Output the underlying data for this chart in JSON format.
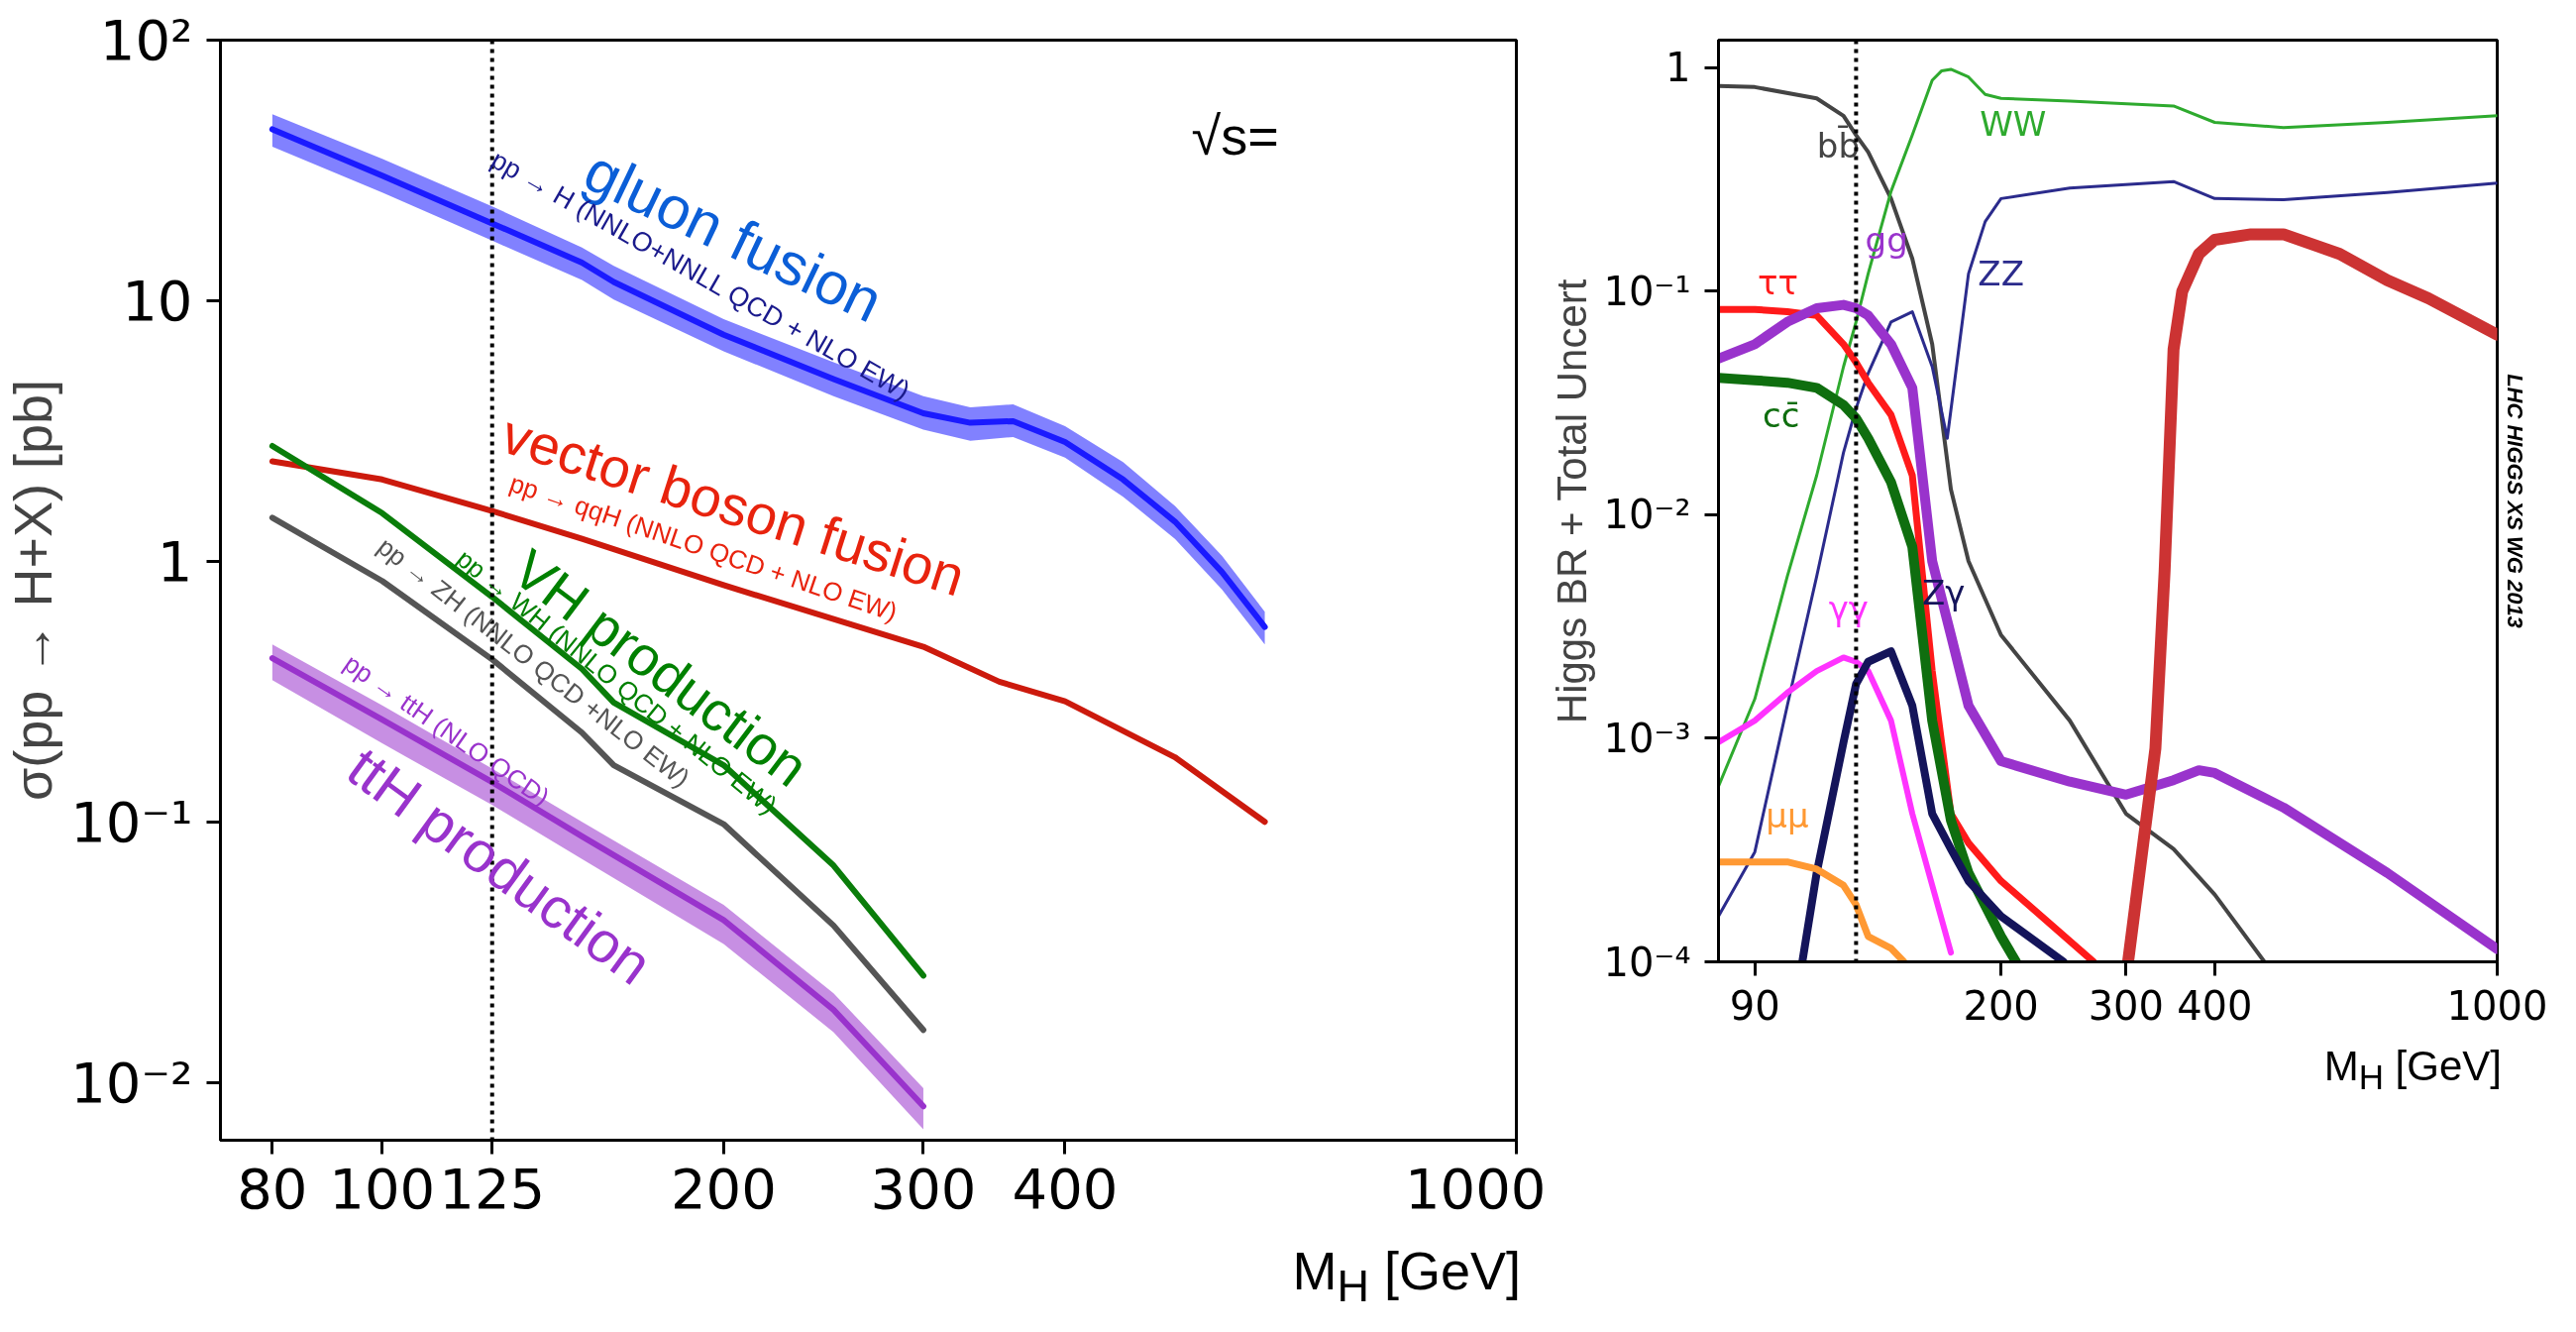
{
  "chart_data": [
    {
      "type": "line",
      "log": "xy",
      "xlim": [
        72,
        1000
      ],
      "ylim": [
        0.006,
        100
      ],
      "xticks": [
        80,
        100,
        125,
        200,
        300,
        400,
        1000
      ],
      "yticks": [
        {
          "value": 0.01,
          "label": "10⁻²"
        },
        {
          "value": 0.1,
          "label": "10⁻¹"
        },
        {
          "value": 1,
          "label": "1"
        },
        {
          "value": 10,
          "label": "10"
        },
        {
          "value": 100,
          "label": "10²"
        }
      ],
      "xlabel": "M$_{H}$ [GeV]",
      "ylabel": "σ(pp → H+X) [pb]",
      "ref_lines": [
        {
          "axis": "x",
          "value": 125,
          "color": "#000000",
          "line_style": "dotted"
        }
      ],
      "series": [
        {
          "color": "#1a1aff",
          "x": [
            80,
            100,
            125,
            150,
            160,
            200,
            250,
            300,
            330,
            360,
            400,
            450,
            500,
            550,
            600
          ],
          "values": [
            45.5,
            30.2,
            19.8,
            14,
            11.8,
            7.4,
            5.0,
            3.7,
            3.4,
            3.45,
            2.87,
            2.06,
            1.42,
            0.91,
            0.56
          ],
          "upper": [
            52,
            35,
            23,
            16,
            13.6,
            8.5,
            5.8,
            4.3,
            3.9,
            4.0,
            3.3,
            2.4,
            1.63,
            1.05,
            0.64
          ],
          "lower": [
            39,
            26,
            17,
            12,
            10.1,
            6.4,
            4.3,
            3.2,
            2.9,
            3.0,
            2.5,
            1.77,
            1.22,
            0.78,
            0.48
          ]
        },
        {
          "color": "#cc1a0d",
          "x": [
            80,
            100,
            125,
            150,
            200,
            250,
            300,
            350,
            400,
            500,
            600
          ],
          "values": [
            2.42,
            2.06,
            1.56,
            1.22,
            0.81,
            0.6,
            0.47,
            0.345,
            0.29,
            0.177,
            0.1
          ]
        },
        {
          "color": "#0a7d0a",
          "x": [
            80,
            100,
            125,
            150,
            160,
            200,
            250,
            300
          ],
          "values": [
            2.77,
            1.53,
            0.73,
            0.386,
            0.287,
            0.165,
            0.068,
            0.0257
          ]
        },
        {
          "color": "#555555",
          "x": [
            80,
            100,
            125,
            150,
            160,
            200,
            250,
            300
          ],
          "values": [
            1.47,
            0.84,
            0.42,
            0.22,
            0.165,
            0.098,
            0.04,
            0.0159
          ]
        },
        {
          "color": "#9933cc",
          "x": [
            80,
            100,
            125,
            150,
            200,
            250,
            300
          ],
          "values": [
            0.425,
            0.247,
            0.142,
            0.088,
            0.042,
            0.019,
            0.0081
          ],
          "upper": [
            0.48,
            0.28,
            0.16,
            0.1,
            0.048,
            0.022,
            0.0095
          ],
          "lower": [
            0.35,
            0.2,
            0.116,
            0.072,
            0.034,
            0.0156,
            0.0066
          ]
        }
      ],
      "annotations": [
        "gluon fusion",
        "pp → H (NNLO+NNLL QCD + NLO EW)",
        "vector boson fusion",
        "pp → qqH (NNLO QCD + NLO EW)",
        "VH production",
        "pp → WH (NNLO QCD + NLO EW)",
        "pp → ZH (NNLO QCD +NLO EW)",
        "ttH production",
        "pp → ttH (NLO QCD)",
        "√s="
      ]
    },
    {
      "type": "line",
      "log": "xy",
      "xlim": [
        80,
        1000
      ],
      "ylim": [
        0.0001,
        1.33
      ],
      "xticks": [
        90,
        200,
        300,
        400,
        1000
      ],
      "yticks": [
        {
          "value": 0.0001,
          "label": "10⁻⁴"
        },
        {
          "value": 0.001,
          "label": "10⁻³"
        },
        {
          "value": 0.01,
          "label": "10⁻²"
        },
        {
          "value": 0.1,
          "label": "10⁻¹"
        },
        1
      ],
      "xlabel": "M$_{H}$ [GeV]",
      "ylabel": "Higgs BR + Total Uncert",
      "ref_lines": [
        {
          "axis": "x",
          "value": 125,
          "color": "#000000",
          "line_style": "dotted"
        }
      ],
      "series": [
        {
          "name": "bb̄",
          "color": "#444444",
          "x": [
            80,
            90,
            110,
            120,
            125,
            130,
            140,
            150,
            160,
            170,
            180,
            200,
            250,
            300,
            350,
            400,
            470
          ],
          "values": [
            0.83,
            0.82,
            0.73,
            0.61,
            0.5,
            0.42,
            0.26,
            0.14,
            0.058,
            0.013,
            0.0062,
            0.0029,
            0.0012,
            0.00046,
            0.00032,
            0.0002,
            0.0001
          ]
        },
        {
          "name": "WW",
          "color": "#2eaa2e",
          "x": [
            80,
            90,
            100,
            110,
            120,
            125,
            130,
            140,
            150,
            160,
            165,
            170,
            180,
            190,
            200,
            250,
            350,
            400,
            500,
            700,
            1000
          ],
          "values": [
            0.00061,
            0.0015,
            0.0053,
            0.015,
            0.046,
            0.073,
            0.12,
            0.28,
            0.5,
            0.88,
            0.97,
            0.985,
            0.91,
            0.76,
            0.73,
            0.71,
            0.675,
            0.57,
            0.54,
            0.57,
            0.61
          ]
        },
        {
          "name": "ZZ",
          "color": "#2b2b8c",
          "x": [
            80,
            90,
            100,
            110,
            120,
            125,
            130,
            140,
            150,
            160,
            168,
            175,
            180,
            190,
            200,
            250,
            350,
            400,
            500,
            700,
            1000
          ],
          "values": [
            0.00016,
            0.00031,
            0.0014,
            0.0053,
            0.019,
            0.03,
            0.043,
            0.073,
            0.081,
            0.046,
            0.022,
            0.06,
            0.12,
            0.205,
            0.26,
            0.29,
            0.31,
            0.26,
            0.257,
            0.277,
            0.305
          ]
        },
        {
          "name": "ττ",
          "color": "#ff1a1a",
          "x": [
            80,
            90,
            100,
            110,
            120,
            125,
            130,
            140,
            150,
            160,
            170,
            180,
            200,
            270
          ],
          "values": [
            0.083,
            0.083,
            0.081,
            0.078,
            0.058,
            0.048,
            0.039,
            0.028,
            0.015,
            0.002,
            0.00046,
            0.00034,
            0.00023,
            0.0001
          ]
        },
        {
          "name": "gg",
          "color": "#9933cc",
          "x": [
            80,
            90,
            100,
            110,
            120,
            125,
            130,
            140,
            150,
            160,
            170,
            180,
            200,
            250,
            300,
            350,
            380,
            400,
            500,
            700,
            1000
          ],
          "values": [
            0.05,
            0.058,
            0.073,
            0.084,
            0.087,
            0.084,
            0.078,
            0.058,
            0.037,
            0.0062,
            0.0029,
            0.0014,
            0.00079,
            0.00064,
            0.00056,
            0.00065,
            0.00072,
            0.0007,
            0.00049,
            0.00025,
            0.000114
          ]
        },
        {
          "name": "cc̄",
          "color": "#0f6e0f",
          "x": [
            80,
            90,
            100,
            110,
            120,
            125,
            130,
            140,
            150,
            160,
            170,
            180,
            200,
            210
          ],
          "values": [
            0.041,
            0.04,
            0.039,
            0.037,
            0.031,
            0.027,
            0.022,
            0.014,
            0.0072,
            0.0012,
            0.00043,
            0.00025,
            0.00013,
            0.0001
          ]
        },
        {
          "name": "γγ",
          "color": "#ff33ff",
          "x": [
            80,
            90,
            100,
            110,
            120,
            125,
            130,
            140,
            150,
            160,
            170
          ],
          "values": [
            0.00096,
            0.0012,
            0.0016,
            0.002,
            0.0023,
            0.0022,
            0.002,
            0.0012,
            0.00046,
            0.00022,
            0.00011
          ]
        },
        {
          "name": "Zγ",
          "color": "#14145a",
          "x": [
            105,
            110,
            120,
            125,
            130,
            140,
            150,
            160,
            170,
            180,
            200,
            245
          ],
          "values": [
            0.0001,
            0.00025,
            0.00096,
            0.00175,
            0.0022,
            0.00245,
            0.0014,
            0.00046,
            0.00032,
            0.00023,
            0.00016,
            0.0001
          ]
        },
        {
          "name": "μμ",
          "color": "#ff9933",
          "x": [
            80,
            90,
            100,
            110,
            120,
            125,
            130,
            140,
            146
          ],
          "values": [
            0.00028,
            0.00028,
            0.00028,
            0.00026,
            0.00022,
            0.00018,
            0.00013,
            0.000115,
            0.0001
          ]
        },
        {
          "color": "#cc3333",
          "x": [
            302,
            330,
            340,
            350,
            360,
            380,
            400,
            450,
            500,
            600,
            700,
            800,
            1000
          ],
          "values": [
            0.0001,
            0.0009,
            0.0056,
            0.055,
            0.1,
            0.147,
            0.17,
            0.18,
            0.18,
            0.147,
            0.112,
            0.093,
            0.064
          ]
        }
      ],
      "annotations": [
        "LHC HIGGS XS WG 2013"
      ]
    }
  ]
}
